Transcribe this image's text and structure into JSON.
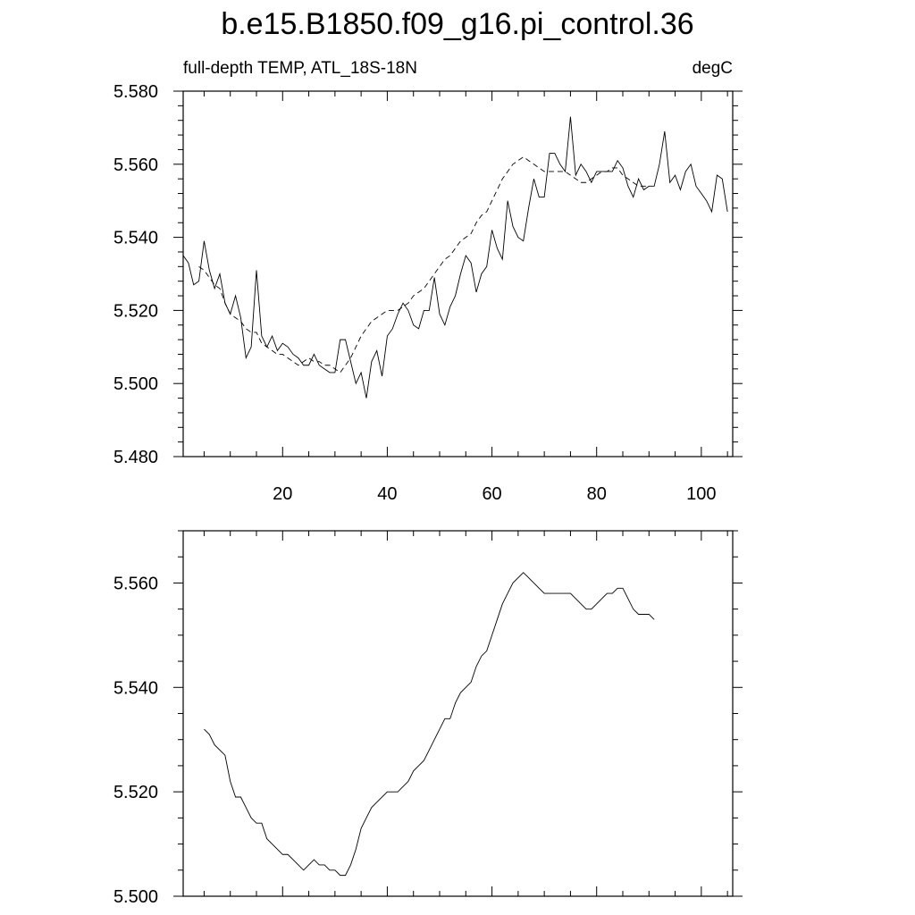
{
  "page": {
    "title": "b.e15.B1850.f09_g16.pi_control.36"
  },
  "chart_data": [
    {
      "type": "line",
      "left_label": "full-depth TEMP, ATL_18S-18N",
      "right_label": "degC",
      "xlim": [
        1,
        106
      ],
      "ylim": [
        5.48,
        5.58
      ],
      "x_ticks": [
        20,
        40,
        60,
        80,
        100
      ],
      "y_ticks": [
        5.48,
        5.5,
        5.52,
        5.54,
        5.56,
        5.58
      ],
      "y_tick_labels": [
        "5.480",
        "5.500",
        "5.520",
        "5.540",
        "5.560",
        "5.580"
      ],
      "grid": false,
      "series": [
        {
          "style": "solid",
          "x_start": 1,
          "values": [
            5.535,
            5.533,
            5.527,
            5.528,
            5.539,
            5.531,
            5.526,
            5.53,
            5.522,
            5.519,
            5.524,
            5.518,
            5.507,
            5.51,
            5.531,
            5.513,
            5.51,
            5.513,
            5.509,
            5.511,
            5.51,
            5.508,
            5.507,
            5.505,
            5.505,
            5.508,
            5.505,
            5.504,
            5.503,
            5.503,
            5.512,
            5.512,
            5.506,
            5.5,
            5.503,
            5.496,
            5.506,
            5.509,
            5.502,
            5.513,
            5.515,
            5.519,
            5.522,
            5.52,
            5.516,
            5.515,
            5.52,
            5.52,
            5.529,
            5.519,
            5.516,
            5.521,
            5.524,
            5.53,
            5.535,
            5.533,
            5.525,
            5.53,
            5.532,
            5.542,
            5.537,
            5.534,
            5.55,
            5.543,
            5.54,
            5.539,
            5.548,
            5.556,
            5.551,
            5.551,
            5.563,
            5.563,
            5.56,
            5.558,
            5.573,
            5.557,
            5.56,
            5.558,
            5.555,
            5.558,
            5.558,
            5.558,
            5.558,
            5.561,
            5.559,
            5.554,
            5.551,
            5.556,
            5.553,
            5.554,
            5.554,
            5.56,
            5.569,
            5.555,
            5.557,
            5.553,
            5.558,
            5.56,
            5.554,
            5.552,
            5.55,
            5.547,
            5.557,
            5.556,
            5.547
          ]
        },
        {
          "style": "dashed",
          "x_start": 4,
          "values": [
            5.532,
            5.531,
            5.529,
            5.527,
            5.526,
            5.522,
            5.519,
            5.518,
            5.517,
            5.515,
            5.514,
            5.514,
            5.511,
            5.51,
            5.509,
            5.508,
            5.508,
            5.507,
            5.506,
            5.505,
            5.506,
            5.507,
            5.506,
            5.506,
            5.505,
            5.505,
            5.504,
            5.503,
            5.505,
            5.507,
            5.51,
            5.513,
            5.515,
            5.517,
            5.518,
            5.519,
            5.52,
            5.52,
            5.52,
            5.521,
            5.522,
            5.524,
            5.525,
            5.526,
            5.528,
            5.53,
            5.532,
            5.534,
            5.535,
            5.537,
            5.539,
            5.54,
            5.541,
            5.544,
            5.546,
            5.547,
            5.55,
            5.553,
            5.556,
            5.558,
            5.56,
            5.561,
            5.562,
            5.561,
            5.56,
            5.559,
            5.558,
            5.558,
            5.558,
            5.558,
            5.558,
            5.557,
            5.556,
            5.555,
            5.555,
            5.556,
            5.557,
            5.558,
            5.558,
            5.559,
            5.559,
            5.557,
            5.556,
            5.555,
            5.554,
            5.554,
            5.554
          ]
        }
      ]
    },
    {
      "type": "line",
      "xlim": [
        1,
        106
      ],
      "ylim": [
        5.5,
        5.57
      ],
      "x_ticks": [
        20,
        40,
        60,
        80,
        100
      ],
      "y_ticks": [
        5.5,
        5.52,
        5.54,
        5.56
      ],
      "y_tick_labels": [
        "5.500",
        "5.520",
        "5.540",
        "5.560"
      ],
      "grid": false,
      "series": [
        {
          "style": "solid",
          "x_start": 5,
          "values": [
            5.532,
            5.531,
            5.529,
            5.528,
            5.527,
            5.522,
            5.519,
            5.519,
            5.517,
            5.515,
            5.514,
            5.514,
            5.511,
            5.51,
            5.509,
            5.508,
            5.508,
            5.507,
            5.506,
            5.505,
            5.506,
            5.507,
            5.506,
            5.506,
            5.505,
            5.505,
            5.504,
            5.504,
            5.506,
            5.509,
            5.513,
            5.515,
            5.517,
            5.518,
            5.519,
            5.52,
            5.52,
            5.52,
            5.521,
            5.522,
            5.524,
            5.525,
            5.526,
            5.528,
            5.53,
            5.532,
            5.534,
            5.534,
            5.537,
            5.539,
            5.54,
            5.541,
            5.544,
            5.546,
            5.547,
            5.55,
            5.553,
            5.556,
            5.558,
            5.56,
            5.561,
            5.562,
            5.561,
            5.56,
            5.559,
            5.558,
            5.558,
            5.558,
            5.558,
            5.558,
            5.558,
            5.557,
            5.556,
            5.555,
            5.555,
            5.556,
            5.557,
            5.558,
            5.558,
            5.559,
            5.559,
            5.557,
            5.555,
            5.554,
            5.554,
            5.554,
            5.553
          ]
        }
      ]
    }
  ]
}
